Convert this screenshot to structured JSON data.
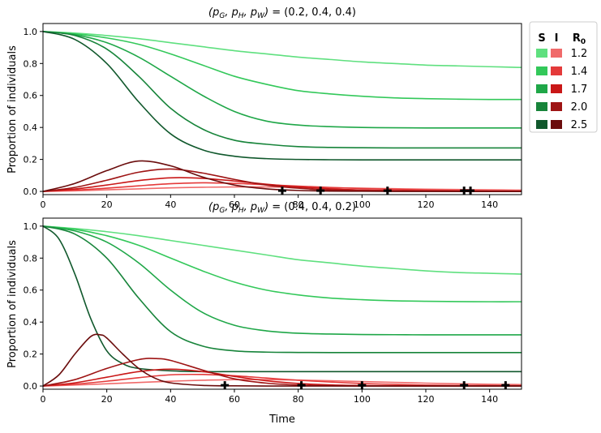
{
  "chart_data": [
    {
      "type": "line",
      "title_prefix": "(p",
      "title": "(p_G, p_H, p_W) = (0.2, 0.4, 0.4)",
      "title_values": "(0.2, 0.4, 0.4)",
      "ylabel": "Proportion of individuals",
      "xlabel": "",
      "xlim": [
        0,
        150
      ],
      "ylim": [
        -0.02,
        1.05
      ],
      "xticks": [
        "0",
        "20",
        "40",
        "60",
        "80",
        "100",
        "120",
        "140"
      ],
      "yticks": [
        "0.0",
        "0.2",
        "0.4",
        "0.6",
        "0.8",
        "1.0"
      ],
      "series": [
        {
          "name": "S",
          "R0": "1.2",
          "color": "#5fe07f",
          "x": [
            0,
            10,
            20,
            30,
            40,
            50,
            60,
            70,
            80,
            90,
            100,
            110,
            120,
            130,
            140,
            150
          ],
          "values": [
            1.0,
            0.99,
            0.975,
            0.955,
            0.93,
            0.905,
            0.88,
            0.86,
            0.84,
            0.825,
            0.81,
            0.8,
            0.79,
            0.785,
            0.78,
            0.775
          ]
        },
        {
          "name": "S",
          "R0": "1.4",
          "color": "#33c85a",
          "x": [
            0,
            10,
            20,
            30,
            40,
            50,
            60,
            70,
            80,
            90,
            100,
            110,
            120,
            130,
            140,
            150
          ],
          "values": [
            1.0,
            0.985,
            0.96,
            0.92,
            0.86,
            0.79,
            0.72,
            0.67,
            0.63,
            0.61,
            0.595,
            0.585,
            0.58,
            0.577,
            0.575,
            0.575
          ]
        },
        {
          "name": "S",
          "R0": "1.7",
          "color": "#1fa748",
          "x": [
            0,
            10,
            20,
            30,
            40,
            50,
            60,
            70,
            80,
            90,
            100,
            110,
            120,
            130,
            140,
            150
          ],
          "values": [
            1.0,
            0.98,
            0.93,
            0.84,
            0.72,
            0.6,
            0.5,
            0.44,
            0.415,
            0.405,
            0.4,
            0.398,
            0.397,
            0.397,
            0.397,
            0.397
          ]
        },
        {
          "name": "S",
          "R0": "2.0",
          "color": "#17843a",
          "x": [
            0,
            10,
            20,
            30,
            40,
            50,
            60,
            70,
            80,
            90,
            100,
            110,
            120,
            130,
            140,
            150
          ],
          "values": [
            1.0,
            0.975,
            0.89,
            0.72,
            0.52,
            0.39,
            0.32,
            0.295,
            0.28,
            0.275,
            0.273,
            0.272,
            0.272,
            0.272,
            0.272,
            0.272
          ]
        },
        {
          "name": "S",
          "R0": "2.5",
          "color": "#10582c",
          "x": [
            0,
            10,
            20,
            30,
            40,
            50,
            60,
            70,
            80,
            90,
            100,
            110,
            120,
            130,
            140,
            150
          ],
          "values": [
            1.0,
            0.95,
            0.8,
            0.56,
            0.36,
            0.26,
            0.22,
            0.205,
            0.2,
            0.198,
            0.197,
            0.197,
            0.197,
            0.197,
            0.197,
            0.197
          ]
        },
        {
          "name": "I",
          "R0": "1.2",
          "color": "#f06a6a",
          "x": [
            0,
            10,
            20,
            30,
            40,
            50,
            60,
            70,
            80,
            90,
            100,
            110,
            120,
            130,
            140,
            150
          ],
          "values": [
            0.0,
            0.004,
            0.01,
            0.016,
            0.022,
            0.026,
            0.028,
            0.028,
            0.026,
            0.023,
            0.02,
            0.017,
            0.014,
            0.012,
            0.01,
            0.008
          ]
        },
        {
          "name": "I",
          "R0": "1.4",
          "color": "#e43a3a",
          "x": [
            0,
            10,
            20,
            30,
            40,
            50,
            60,
            70,
            80,
            90,
            100,
            110,
            120,
            130,
            140,
            150
          ],
          "values": [
            0.0,
            0.008,
            0.02,
            0.035,
            0.048,
            0.054,
            0.05,
            0.042,
            0.033,
            0.025,
            0.018,
            0.013,
            0.009,
            0.006,
            0.004,
            0.003
          ]
        },
        {
          "name": "I",
          "R0": "1.7",
          "color": "#c91717",
          "x": [
            0,
            10,
            20,
            30,
            40,
            50,
            60,
            70,
            80,
            90,
            100,
            110,
            120,
            130,
            140,
            150
          ],
          "values": [
            0.0,
            0.015,
            0.04,
            0.068,
            0.085,
            0.082,
            0.065,
            0.045,
            0.028,
            0.016,
            0.009,
            0.005,
            0.003,
            0.002,
            0.001,
            0.0
          ]
        },
        {
          "name": "I",
          "R0": "2.0",
          "color": "#9e1414",
          "x": [
            0,
            10,
            20,
            30,
            40,
            50,
            60,
            70,
            80,
            90,
            100,
            110,
            120,
            130,
            140,
            150
          ],
          "values": [
            0.0,
            0.025,
            0.07,
            0.12,
            0.14,
            0.115,
            0.075,
            0.04,
            0.02,
            0.009,
            0.004,
            0.002,
            0.001,
            0.0,
            0.0,
            0.0
          ]
        },
        {
          "name": "I",
          "R0": "2.5",
          "color": "#6b0d0d",
          "x": [
            0,
            10,
            20,
            30,
            40,
            50,
            60,
            70,
            80,
            90,
            100,
            110,
            120,
            130,
            140,
            150
          ],
          "values": [
            0.0,
            0.05,
            0.13,
            0.19,
            0.16,
            0.09,
            0.04,
            0.016,
            0.006,
            0.002,
            0.001,
            0.0,
            0.0,
            0.0,
            0.0,
            0.0
          ]
        }
      ],
      "markers": {
        "x": [
          75,
          87,
          108,
          132,
          134
        ],
        "y": [
          0.005,
          0.005,
          0.005,
          0.005,
          0.005
        ],
        "symbol": "plus"
      }
    },
    {
      "type": "line",
      "title_prefix": "(p",
      "title": "(p_G, p_H, p_W) = (0.4, 0.4, 0.2)",
      "title_values": "(0.4, 0.4, 0.2)",
      "ylabel": "Proportion of individuals",
      "xlabel": "Time",
      "xlim": [
        0,
        150
      ],
      "ylim": [
        -0.02,
        1.05
      ],
      "xticks": [
        "0",
        "20",
        "40",
        "60",
        "80",
        "100",
        "120",
        "140"
      ],
      "yticks": [
        "0.0",
        "0.2",
        "0.4",
        "0.6",
        "0.8",
        "1.0"
      ],
      "series": [
        {
          "name": "S",
          "R0": "1.2",
          "color": "#5fe07f",
          "x": [
            0,
            10,
            20,
            30,
            40,
            50,
            60,
            70,
            80,
            90,
            100,
            110,
            120,
            130,
            140,
            150
          ],
          "values": [
            1.0,
            0.985,
            0.965,
            0.94,
            0.91,
            0.88,
            0.85,
            0.82,
            0.79,
            0.77,
            0.75,
            0.735,
            0.72,
            0.71,
            0.705,
            0.7
          ]
        },
        {
          "name": "S",
          "R0": "1.4",
          "color": "#33c85a",
          "x": [
            0,
            10,
            20,
            30,
            40,
            50,
            60,
            70,
            80,
            90,
            100,
            110,
            120,
            130,
            140,
            150
          ],
          "values": [
            1.0,
            0.98,
            0.94,
            0.88,
            0.8,
            0.72,
            0.65,
            0.6,
            0.57,
            0.55,
            0.54,
            0.533,
            0.53,
            0.528,
            0.527,
            0.527
          ]
        },
        {
          "name": "S",
          "R0": "1.7",
          "color": "#1fa748",
          "x": [
            0,
            10,
            20,
            30,
            40,
            50,
            60,
            70,
            80,
            90,
            100,
            110,
            120,
            130,
            140,
            150
          ],
          "values": [
            1.0,
            0.97,
            0.9,
            0.77,
            0.6,
            0.46,
            0.38,
            0.345,
            0.33,
            0.325,
            0.322,
            0.321,
            0.32,
            0.32,
            0.32,
            0.32
          ]
        },
        {
          "name": "S",
          "R0": "2.0",
          "color": "#17843a",
          "x": [
            0,
            10,
            20,
            30,
            40,
            50,
            60,
            70,
            80,
            90,
            100,
            110,
            120,
            130,
            140,
            150
          ],
          "values": [
            1.0,
            0.95,
            0.8,
            0.55,
            0.34,
            0.25,
            0.22,
            0.212,
            0.21,
            0.209,
            0.209,
            0.209,
            0.209,
            0.209,
            0.209,
            0.209
          ]
        },
        {
          "name": "S",
          "R0": "2.5",
          "color": "#10582c",
          "x": [
            0,
            5,
            10,
            15,
            20,
            25,
            30,
            40,
            50,
            60,
            70,
            80,
            90,
            100,
            120,
            150
          ],
          "values": [
            1.0,
            0.92,
            0.7,
            0.42,
            0.22,
            0.14,
            0.11,
            0.095,
            0.09,
            0.09,
            0.09,
            0.09,
            0.09,
            0.09,
            0.09,
            0.09
          ]
        },
        {
          "name": "I",
          "R0": "1.2",
          "color": "#f06a6a",
          "x": [
            0,
            10,
            20,
            30,
            40,
            50,
            60,
            70,
            80,
            90,
            100,
            110,
            120,
            130,
            140,
            150
          ],
          "values": [
            0.0,
            0.006,
            0.014,
            0.022,
            0.03,
            0.036,
            0.04,
            0.04,
            0.037,
            0.033,
            0.028,
            0.023,
            0.018,
            0.014,
            0.011,
            0.009
          ]
        },
        {
          "name": "I",
          "R0": "1.4",
          "color": "#e43a3a",
          "x": [
            0,
            10,
            20,
            30,
            40,
            50,
            60,
            70,
            80,
            90,
            100,
            110,
            120,
            130,
            140,
            150
          ],
          "values": [
            0.0,
            0.012,
            0.03,
            0.052,
            0.07,
            0.072,
            0.064,
            0.05,
            0.036,
            0.025,
            0.016,
            0.01,
            0.006,
            0.004,
            0.003,
            0.002
          ]
        },
        {
          "name": "I",
          "R0": "1.7",
          "color": "#c91717",
          "x": [
            0,
            10,
            20,
            30,
            40,
            50,
            60,
            70,
            80,
            90,
            100,
            110,
            120,
            130,
            140,
            150
          ],
          "values": [
            0.0,
            0.02,
            0.055,
            0.09,
            0.105,
            0.09,
            0.06,
            0.033,
            0.016,
            0.007,
            0.003,
            0.001,
            0.0,
            0.0,
            0.0,
            0.0
          ]
        },
        {
          "name": "I",
          "R0": "2.0",
          "color": "#9e1414",
          "x": [
            0,
            10,
            20,
            30,
            35,
            40,
            50,
            60,
            70,
            80,
            90,
            100,
            110,
            120,
            130,
            150
          ],
          "values": [
            0.0,
            0.04,
            0.11,
            0.165,
            0.172,
            0.16,
            0.1,
            0.045,
            0.018,
            0.006,
            0.002,
            0.0,
            0.0,
            0.0,
            0.0,
            0.0
          ]
        },
        {
          "name": "I",
          "R0": "2.5",
          "color": "#6b0d0d",
          "x": [
            0,
            5,
            10,
            15,
            18,
            20,
            25,
            30,
            35,
            40,
            50,
            60,
            70,
            80,
            100,
            150
          ],
          "values": [
            0.0,
            0.07,
            0.2,
            0.31,
            0.32,
            0.3,
            0.2,
            0.11,
            0.05,
            0.02,
            0.004,
            0.001,
            0.0,
            0.0,
            0.0,
            0.0
          ]
        }
      ],
      "markers": {
        "x": [
          57,
          81,
          100,
          132,
          145
        ],
        "y": [
          0.005,
          0.005,
          0.005,
          0.005,
          0.005
        ],
        "symbol": "plus"
      }
    }
  ],
  "legend": {
    "header_s": "S",
    "header_i": "I",
    "header_r": "R",
    "header_r_sub": "0",
    "rows": [
      {
        "r0": "1.2",
        "s_color": "#5fe07f",
        "i_color": "#f06a6a"
      },
      {
        "r0": "1.4",
        "s_color": "#33c85a",
        "i_color": "#e43a3a"
      },
      {
        "r0": "1.7",
        "s_color": "#1fa748",
        "i_color": "#c91717"
      },
      {
        "r0": "2.0",
        "s_color": "#17843a",
        "i_color": "#9e1414"
      },
      {
        "r0": "2.5",
        "s_color": "#10582c",
        "i_color": "#6b0d0d"
      }
    ]
  }
}
